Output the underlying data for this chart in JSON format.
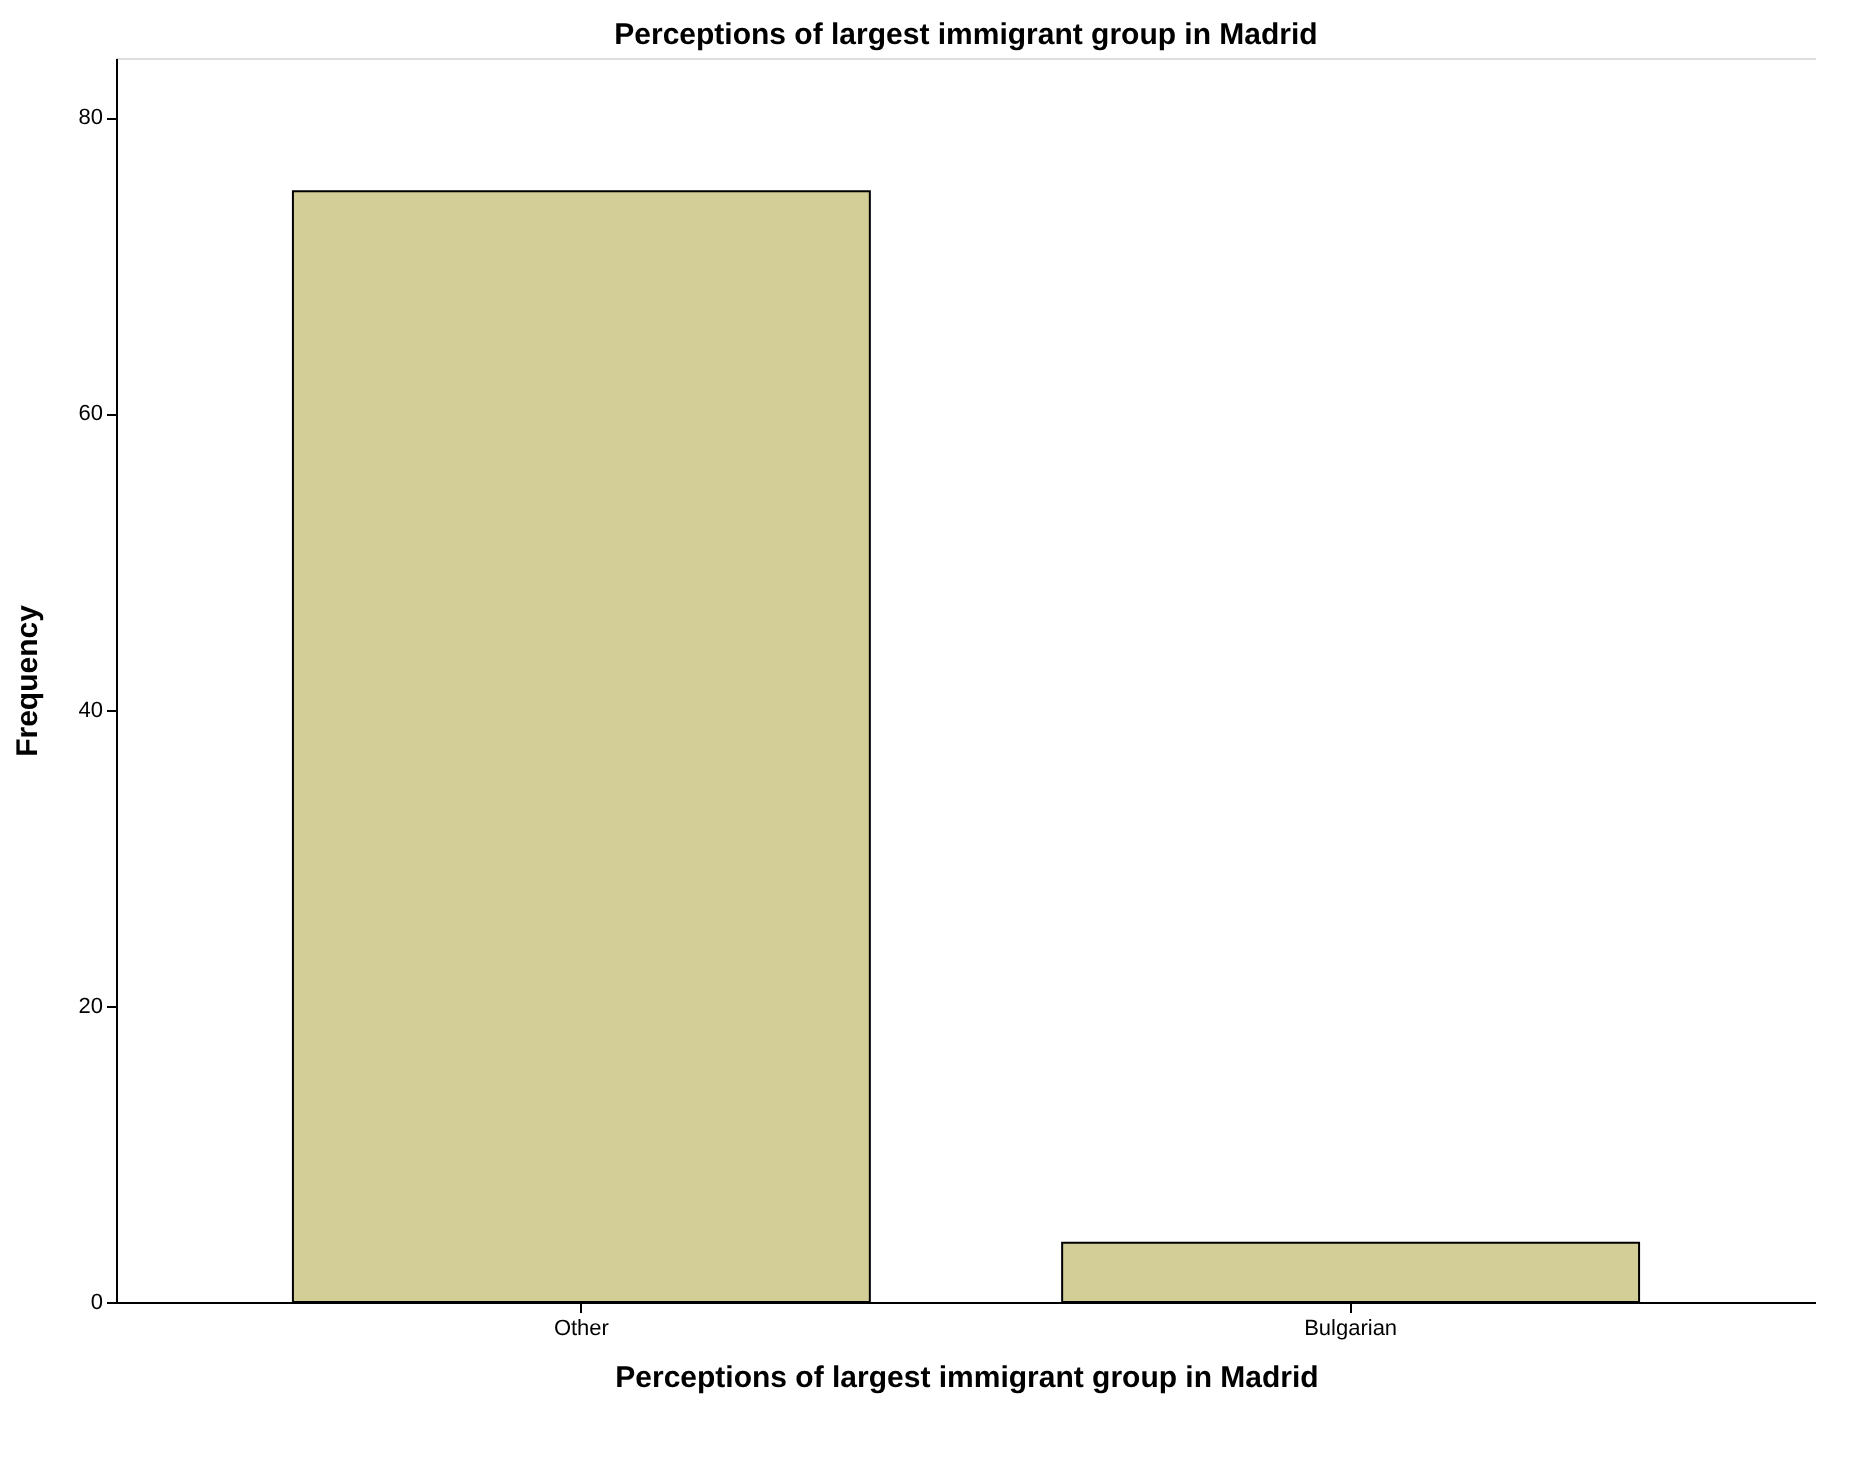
{
  "chart_data": {
    "type": "bar",
    "title": "Perceptions of largest immigrant group in Madrid",
    "xlabel": "Perceptions of largest immigrant group in Madrid",
    "ylabel": "Frequency",
    "categories": [
      "Other",
      "Bulgarian"
    ],
    "values": [
      75,
      4
    ],
    "color": "#d3ce97",
    "ylim": [
      0,
      84
    ],
    "yticks": [
      0,
      20,
      40,
      60,
      80
    ],
    "grid": false
  }
}
